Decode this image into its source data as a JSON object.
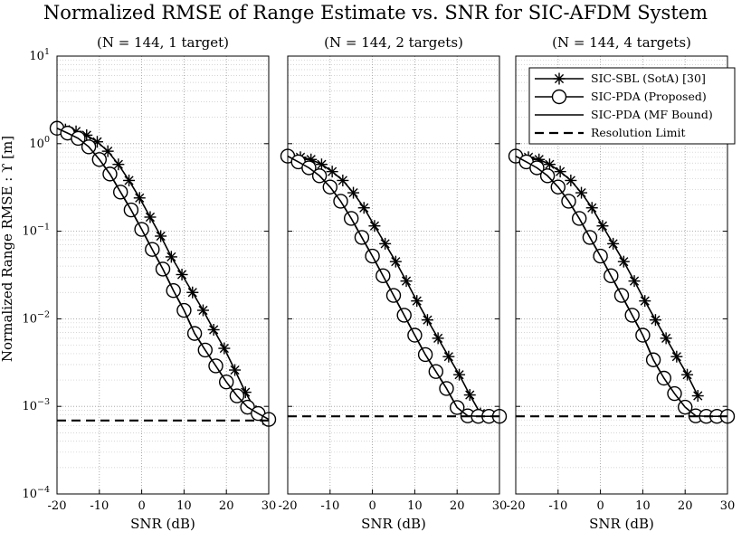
{
  "figure": {
    "title": "Normalized RMSE of Range Estimate vs. SNR for SIC-AFDM System",
    "ylabel": "Normalized Range RMSE : ϒ [m]",
    "xlabel": "SNR (dB)"
  },
  "legend": {
    "placement": "top-right of third panel",
    "entries": [
      "SIC-SBL (SotA) [30]",
      "SIC-PDA (Proposed)",
      "SIC-PDA (MF Bound)",
      "Resolution Limit"
    ]
  },
  "chart_data": [
    {
      "type": "line",
      "title": "(N = 144, 1 target)",
      "xlabel": "SNR (dB)",
      "ylabel": "Normalized Range RMSE : ϒ [m]",
      "yscale": "log",
      "xlim": [
        -20,
        30
      ],
      "ylim": [
        0.0001,
        10
      ],
      "grid": true,
      "x_ticks": [
        "-20",
        "-10",
        "0",
        "10",
        "20",
        "30"
      ],
      "y_ticks": [
        "10",
        "1",
        "0.1",
        "0.01",
        "0.001",
        "0.0001"
      ],
      "series": [
        {
          "name": "SIC-SBL (SotA) [30]",
          "marker": "asterisk",
          "x": [
            -18,
            -15.5,
            -13,
            -10.5,
            -8,
            -5.5,
            -3,
            -0.5,
            2,
            4.5,
            7,
            9.5,
            12,
            14.5,
            17,
            19.5,
            22,
            24.5,
            27,
            29.5
          ],
          "y": [
            1.45,
            1.38,
            1.25,
            1.05,
            0.82,
            0.58,
            0.38,
            0.24,
            0.145,
            0.088,
            0.051,
            0.032,
            0.02,
            0.0125,
            0.0075,
            0.0046,
            0.0026,
            0.00145,
            0.00088,
            0.00069
          ]
        },
        {
          "name": "SIC-PDA (Proposed)",
          "marker": "circle",
          "x": [
            -20,
            -17.5,
            -15,
            -12.5,
            -10,
            -7.5,
            -5,
            -2.5,
            0,
            2.5,
            5,
            7.5,
            10,
            12.5,
            15,
            17.5,
            20,
            22.5,
            25,
            27.5,
            30
          ],
          "y": [
            1.5,
            1.32,
            1.15,
            0.92,
            0.66,
            0.45,
            0.28,
            0.175,
            0.105,
            0.062,
            0.037,
            0.021,
            0.0125,
            0.0068,
            0.0044,
            0.0029,
            0.0019,
            0.00132,
            0.00098,
            0.00083,
            0.00071
          ]
        },
        {
          "name": "SIC-PDA (MF Bound)",
          "marker": "none",
          "x": [
            -20,
            -17.5,
            -15,
            -12.5,
            -10,
            -7.5,
            -5,
            -2.5,
            0,
            2.5,
            5,
            7.5,
            10,
            12.5,
            15,
            17.5,
            20,
            22.5,
            25,
            27.5,
            30
          ],
          "y": [
            1.5,
            1.32,
            1.15,
            0.92,
            0.66,
            0.45,
            0.28,
            0.175,
            0.105,
            0.062,
            0.037,
            0.021,
            0.0125,
            0.0068,
            0.0044,
            0.0029,
            0.0019,
            0.00132,
            0.00098,
            0.00083,
            0.00071
          ]
        },
        {
          "name": "Resolution Limit",
          "marker": "none",
          "dashed": true,
          "x": [
            -20,
            30
          ],
          "y": [
            0.00069,
            0.00069
          ]
        }
      ]
    },
    {
      "type": "line",
      "title": "(N = 144, 2 targets)",
      "xlabel": "SNR (dB)",
      "yscale": "log",
      "xlim": [
        -20,
        30
      ],
      "ylim": [
        0.0001,
        10
      ],
      "grid": true,
      "x_ticks": [
        "-20",
        "-10",
        "0",
        "10",
        "20",
        "30"
      ],
      "series": [
        {
          "name": "SIC-SBL (SotA) [30]",
          "marker": "asterisk",
          "x": [
            -17,
            -14.5,
            -12,
            -9.5,
            -7,
            -4.5,
            -2,
            0.5,
            3,
            5.5,
            8,
            10.5,
            13,
            15.5,
            18,
            20.5,
            23,
            25.5,
            28
          ],
          "y": [
            0.7,
            0.66,
            0.58,
            0.48,
            0.38,
            0.275,
            0.185,
            0.115,
            0.072,
            0.045,
            0.027,
            0.016,
            0.0097,
            0.006,
            0.0037,
            0.0023,
            0.00135,
            0.00083,
            0.00077
          ]
        },
        {
          "name": "SIC-PDA (Proposed)",
          "marker": "circle",
          "x": [
            -20,
            -17.5,
            -15,
            -12.5,
            -10,
            -7.5,
            -5,
            -2.5,
            0,
            2.5,
            5,
            7.5,
            10,
            12.5,
            15,
            17.5,
            20,
            22.5,
            25,
            27.5,
            30
          ],
          "y": [
            0.72,
            0.62,
            0.53,
            0.43,
            0.32,
            0.22,
            0.14,
            0.085,
            0.052,
            0.031,
            0.0185,
            0.011,
            0.0065,
            0.0039,
            0.0025,
            0.0016,
            0.00097,
            0.00078,
            0.00077,
            0.00077,
            0.00077
          ]
        },
        {
          "name": "SIC-PDA (MF Bound)",
          "marker": "none",
          "x": [
            -20,
            -17.5,
            -15,
            -12.5,
            -10,
            -7.5,
            -5,
            -2.5,
            0,
            2.5,
            5,
            7.5,
            10,
            12.5,
            15,
            17.5,
            20,
            22.5,
            25,
            27.5,
            30
          ],
          "y": [
            0.72,
            0.62,
            0.53,
            0.43,
            0.32,
            0.22,
            0.14,
            0.085,
            0.052,
            0.031,
            0.0185,
            0.011,
            0.0065,
            0.0039,
            0.0025,
            0.0016,
            0.00097,
            0.00078,
            0.00077,
            0.00077,
            0.00077
          ]
        },
        {
          "name": "Resolution Limit",
          "marker": "none",
          "dashed": true,
          "x": [
            -20,
            30
          ],
          "y": [
            0.00077,
            0.00077
          ]
        }
      ]
    },
    {
      "type": "line",
      "title": "(N = 144, 4 targets)",
      "xlabel": "SNR (dB)",
      "yscale": "log",
      "xlim": [
        -20,
        30
      ],
      "ylim": [
        0.0001,
        10
      ],
      "grid": true,
      "x_ticks": [
        "-20",
        "-10",
        "0",
        "10",
        "20",
        "30"
      ],
      "series": [
        {
          "name": "SIC-SBL (SotA) [30]",
          "marker": "asterisk",
          "x": [
            -17,
            -14.5,
            -12,
            -9.5,
            -7,
            -4.5,
            -2,
            0.5,
            3,
            5.5,
            8,
            10.5,
            13,
            15.5,
            18,
            20.5,
            23
          ],
          "y": [
            0.7,
            0.66,
            0.58,
            0.48,
            0.38,
            0.275,
            0.185,
            0.115,
            0.072,
            0.045,
            0.027,
            0.016,
            0.0097,
            0.006,
            0.0037,
            0.0023,
            0.00132
          ]
        },
        {
          "name": "SIC-PDA (Proposed)",
          "marker": "circle",
          "x": [
            -20,
            -17.5,
            -15,
            -12.5,
            -10,
            -7.5,
            -5,
            -2.5,
            0,
            2.5,
            5,
            7.5,
            10,
            12.5,
            15,
            17.5,
            20,
            22.5,
            25,
            27.5,
            30
          ],
          "y": [
            0.72,
            0.62,
            0.53,
            0.43,
            0.32,
            0.22,
            0.14,
            0.085,
            0.052,
            0.031,
            0.0185,
            0.011,
            0.0065,
            0.0034,
            0.0021,
            0.0014,
            0.00098,
            0.00078,
            0.00077,
            0.00077,
            0.00077
          ]
        },
        {
          "name": "SIC-PDA (MF Bound)",
          "marker": "none",
          "x": [
            -20,
            -17.5,
            -15,
            -12.5,
            -10,
            -7.5,
            -5,
            -2.5,
            0,
            2.5,
            5,
            7.5,
            10,
            12.5,
            15,
            17.5,
            20,
            22.5,
            25,
            27.5,
            30
          ],
          "y": [
            0.72,
            0.62,
            0.53,
            0.43,
            0.32,
            0.22,
            0.14,
            0.085,
            0.052,
            0.031,
            0.0185,
            0.011,
            0.0065,
            0.0034,
            0.0021,
            0.0014,
            0.00098,
            0.00078,
            0.00077,
            0.00077,
            0.00077
          ]
        },
        {
          "name": "Resolution Limit",
          "marker": "none",
          "dashed": true,
          "x": [
            -20,
            30
          ],
          "y": [
            0.00077,
            0.00077
          ]
        }
      ]
    }
  ]
}
